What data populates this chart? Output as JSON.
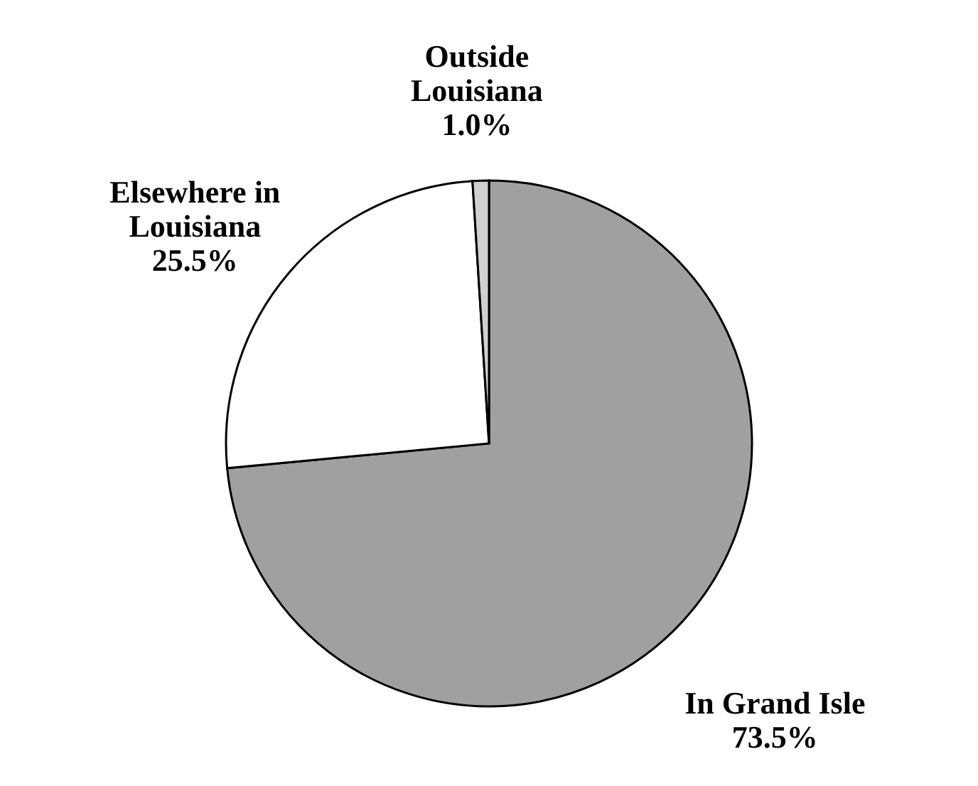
{
  "chart_data": {
    "type": "pie",
    "categories": [
      "In Grand Isle",
      "Elsewhere in Louisiana",
      "Outside Louisiana"
    ],
    "values": [
      73.5,
      25.5,
      1.0
    ],
    "colors": [
      "#a0a0a0",
      "#ffffff",
      "#d0d0d0"
    ],
    "value_labels": [
      "73.5%",
      "25.5%",
      "1.0%"
    ]
  }
}
